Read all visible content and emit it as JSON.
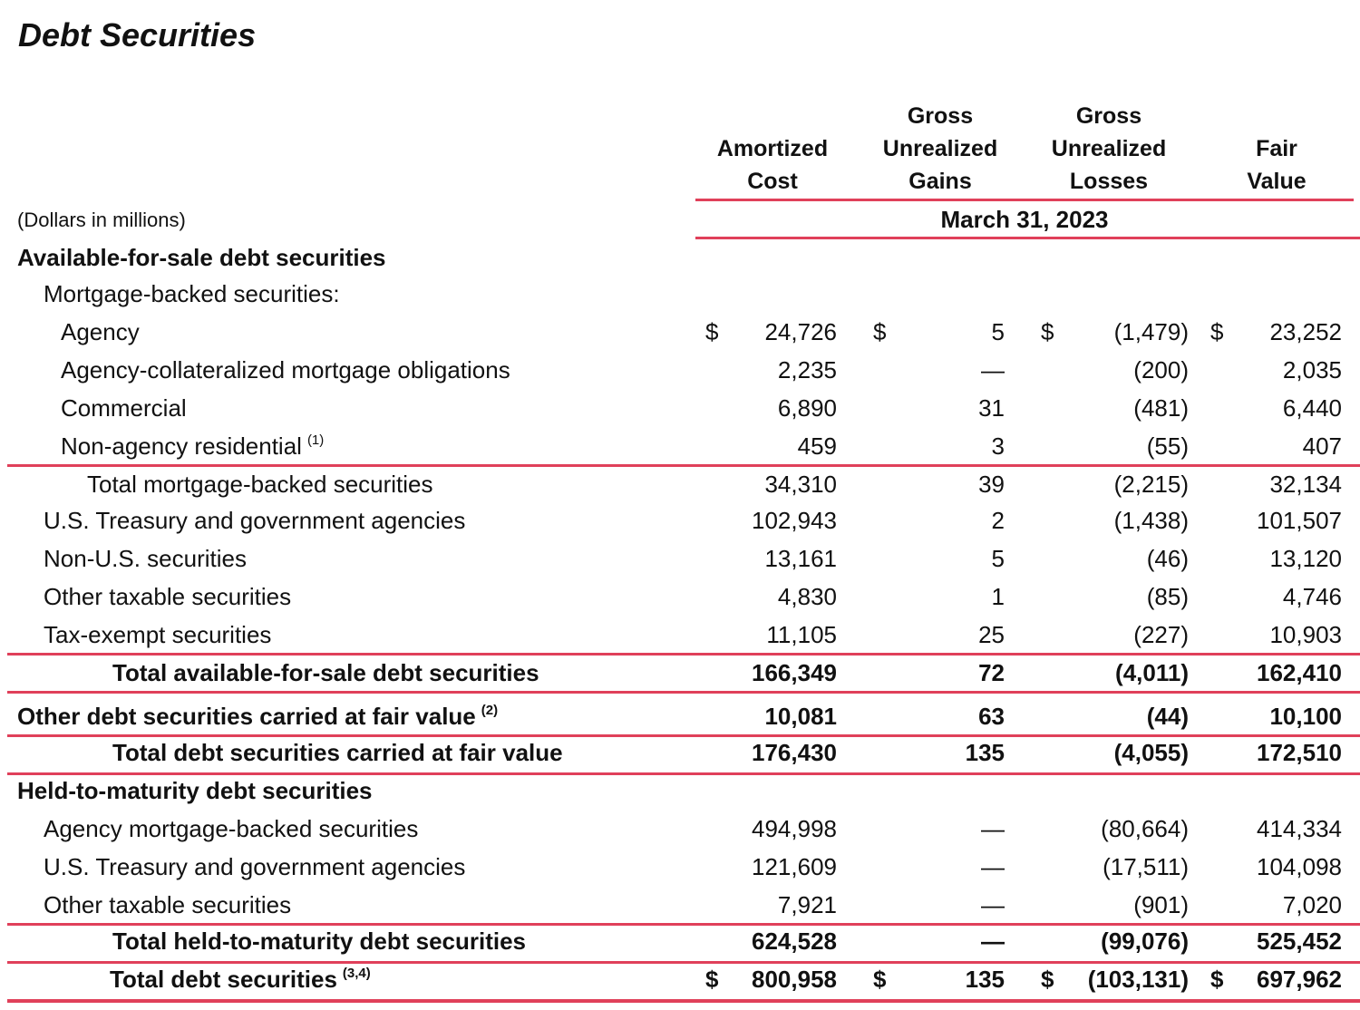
{
  "title": "Debt Securities",
  "units": "(Dollars in millions)",
  "columns": [
    "Amortized\nCost",
    "Gross\nUnrealized\nGains",
    "Gross\nUnrealized\nLosses",
    "Fair\nValue"
  ],
  "period": "March 31, 2023",
  "rule_color": "#e0405a",
  "rows": [
    {
      "label": "Available-for-sale debt securities",
      "indent": 0,
      "bold": true,
      "values": []
    },
    {
      "label": "Mortgage-backed securities:",
      "indent": 1,
      "values": []
    },
    {
      "label": "Agency",
      "indent": 2,
      "values": [
        "24,726",
        "5",
        "(1,479)",
        "23,252"
      ],
      "dollar": true
    },
    {
      "label": "Agency-collateralized mortgage obligations",
      "indent": 2,
      "values": [
        "2,235",
        "—",
        "(200)",
        "2,035"
      ]
    },
    {
      "label": "Commercial",
      "indent": 2,
      "values": [
        "6,890",
        "31",
        "(481)",
        "6,440"
      ]
    },
    {
      "label": "Non-agency residential",
      "note": "(1)",
      "indent": 2,
      "values": [
        "459",
        "3",
        "(55)",
        "407"
      ],
      "rule": true
    },
    {
      "label": "Total mortgage-backed securities",
      "indent": 3,
      "values": [
        "34,310",
        "39",
        "(2,215)",
        "32,134"
      ]
    },
    {
      "label": "U.S. Treasury and government agencies",
      "indent": 1,
      "values": [
        "102,943",
        "2",
        "(1,438)",
        "101,507"
      ]
    },
    {
      "label": "Non-U.S. securities",
      "indent": 1,
      "values": [
        "13,161",
        "5",
        "(46)",
        "13,120"
      ]
    },
    {
      "label": "Other taxable securities",
      "indent": 1,
      "values": [
        "4,830",
        "1",
        "(85)",
        "4,746"
      ]
    },
    {
      "label": "Tax-exempt securities",
      "indent": 1,
      "values": [
        "11,105",
        "25",
        "(227)",
        "10,903"
      ],
      "rule": true
    },
    {
      "label": "Total available-for-sale debt securities",
      "indent": 4,
      "bold": true,
      "values": [
        "166,349",
        "72",
        "(4,011)",
        "162,410"
      ],
      "rule": true
    },
    {
      "label": "Other debt securities carried at fair value",
      "note": "(2)",
      "indent": 0,
      "bold": true,
      "values": [
        "10,081",
        "63",
        "(44)",
        "10,100"
      ],
      "rule": true
    },
    {
      "label": "Total debt securities carried at fair value",
      "indent": 4,
      "bold": true,
      "values": [
        "176,430",
        "135",
        "(4,055)",
        "172,510"
      ],
      "rule": true
    },
    {
      "label": "Held-to-maturity debt securities",
      "indent": 0,
      "bold": true,
      "values": []
    },
    {
      "label": "Agency mortgage-backed securities",
      "indent": 1,
      "values": [
        "494,998",
        "—",
        "(80,664)",
        "414,334"
      ]
    },
    {
      "label": "U.S. Treasury and government agencies",
      "indent": 1,
      "values": [
        "121,609",
        "—",
        "(17,511)",
        "104,098"
      ]
    },
    {
      "label": "Other taxable securities",
      "indent": 1,
      "values": [
        "7,921",
        "—",
        "(901)",
        "7,020"
      ],
      "rule": true
    },
    {
      "label": "Total held-to-maturity debt securities",
      "indent": 4,
      "bold": true,
      "values": [
        "624,528",
        "—",
        "(99,076)",
        "525,452"
      ],
      "rule": true
    },
    {
      "label": "Total debt securities",
      "note": "(3,4)",
      "indent": 4,
      "bold": true,
      "values": [
        "800,958",
        "135",
        "(103,131)",
        "697,962"
      ],
      "dollar": true,
      "rule": "double"
    }
  ],
  "currency_symbol": "$"
}
